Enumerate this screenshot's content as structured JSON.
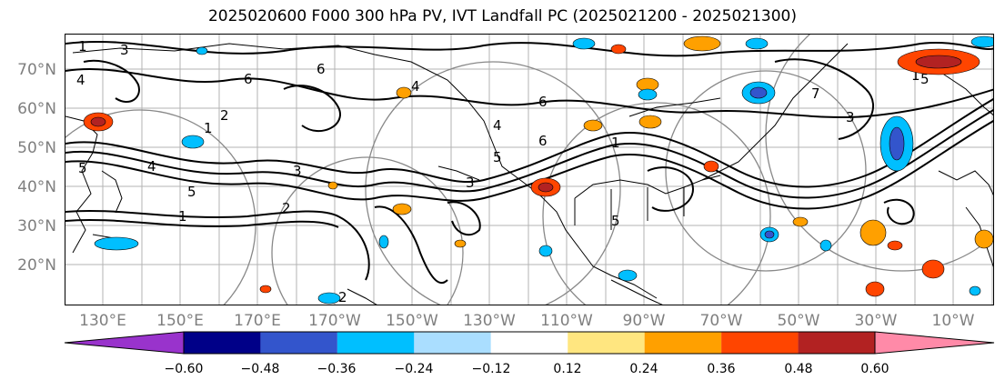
{
  "title": "2025020600 F000 300 hPa PV, IVT Landfall PC (2025021200 - 2025021300)",
  "lat_labels": [
    "70°N",
    "60°N",
    "50°N",
    "40°N",
    "30°N",
    "20°N"
  ],
  "lon_labels": [
    "130°E",
    "150°E",
    "170°E",
    "170°W",
    "150°W",
    "130°W",
    "110°W",
    "90°W",
    "70°W",
    "50°W",
    "30°W",
    "10°W"
  ],
  "contour_labels": [
    "1",
    "3",
    "4",
    "6",
    "6",
    "4",
    "2",
    "1",
    "5",
    "4",
    "5",
    "3",
    "2",
    "1",
    "2",
    "3",
    "5",
    "6",
    "4",
    "6",
    "1",
    "5",
    "7",
    "3",
    "1",
    "5"
  ],
  "colorbar": {
    "ticks": [
      "−0.60",
      "−0.48",
      "−0.36",
      "−0.24",
      "−0.12",
      "0.12",
      "0.24",
      "0.36",
      "0.48",
      "0.60"
    ],
    "colors": [
      "#9933cc",
      "#000088",
      "#3355cc",
      "#00bfff",
      "#aadeff",
      "#ffffff",
      "#ffe680",
      "#ffa000",
      "#ff4500",
      "#b22222",
      "#ff8aa8"
    ]
  },
  "colors": {
    "axis_label": "#7f7f7f",
    "grid": "#b3b3b3",
    "contour": "#000000",
    "range_ring": "#888888"
  }
}
